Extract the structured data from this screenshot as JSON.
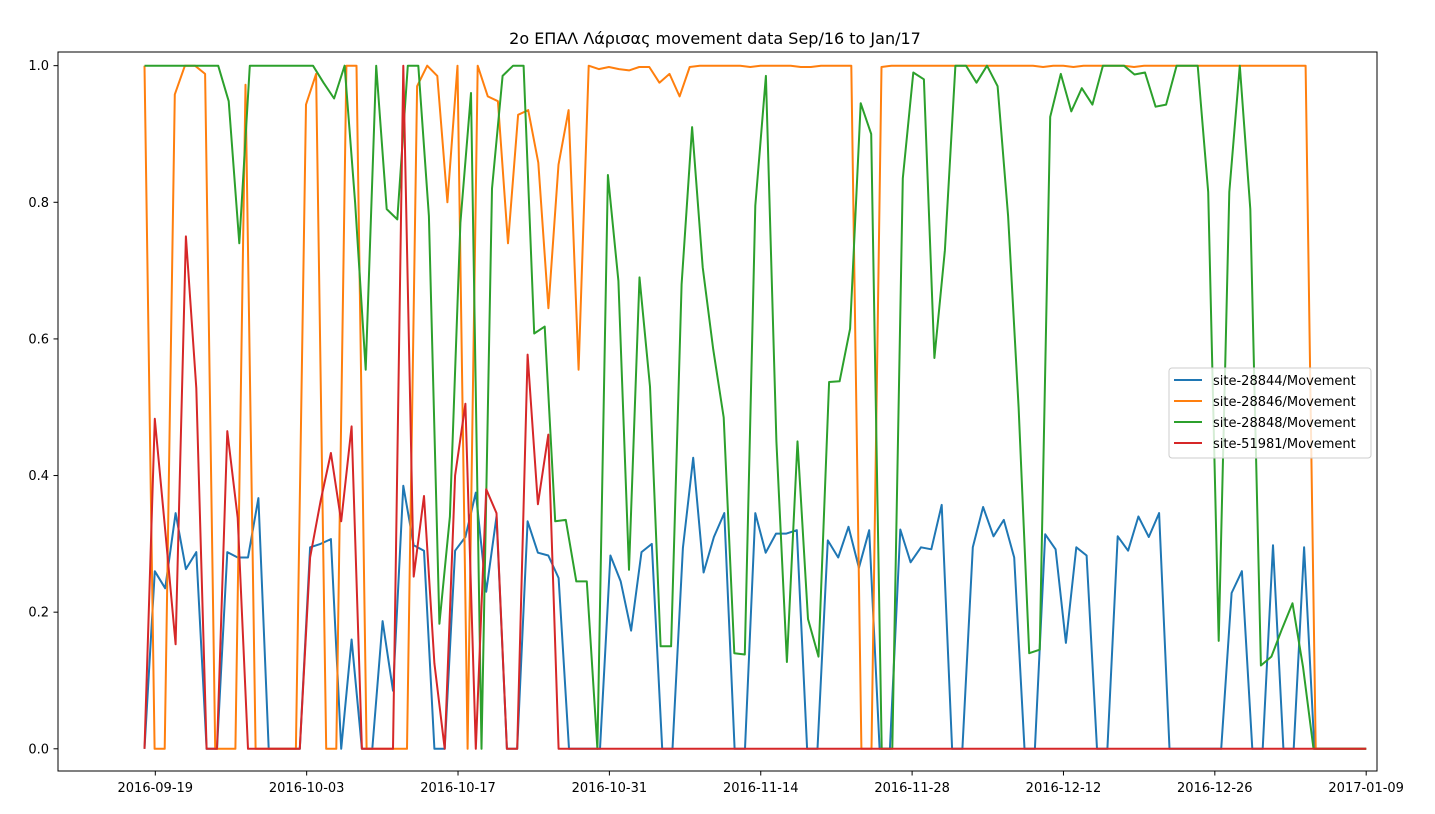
{
  "chart_data": {
    "type": "line",
    "title": "2o ΕΠΑΛ Λάρισας movement data Sep/16 to Jan/17",
    "xlabel": "",
    "ylabel": "",
    "x_start": "2016-09-18",
    "x_end": "2017-01-09",
    "xlim": [
      "2016-09-10",
      "2017-01-10"
    ],
    "ylim": [
      -0.0325,
      1.02
    ],
    "x_ticks": [
      "2016-09-19",
      "2016-10-03",
      "2016-10-17",
      "2016-10-31",
      "2016-11-14",
      "2016-11-28",
      "2016-12-12",
      "2016-12-26",
      "2017-01-09"
    ],
    "y_ticks": [
      0.0,
      0.2,
      0.4,
      0.6,
      0.8,
      1.0
    ],
    "y_tick_labels": [
      "0.0",
      "0.2",
      "0.4",
      "0.6",
      "0.8",
      "1.0"
    ],
    "grid": false,
    "legend_position": "center-right",
    "series": [
      {
        "name": "site-28844/Movement",
        "color": "#1f77b4",
        "values": [
          0,
          0.26,
          0.235,
          0.345,
          0.263,
          0.288,
          0,
          0,
          0.288,
          0.28,
          0.28,
          0.367,
          0,
          0,
          0,
          0,
          0.295,
          0.3,
          0.307,
          0,
          0.16,
          0,
          0,
          0.187,
          0.085,
          0.385,
          0.298,
          0.29,
          0,
          0,
          0.29,
          0.31,
          0.375,
          0.23,
          0.34,
          0,
          0,
          0.333,
          0.287,
          0.283,
          0.25,
          0,
          0,
          0,
          0,
          0.283,
          0.245,
          0.173,
          0.288,
          0.3,
          0,
          0,
          0.294,
          0.426,
          0.258,
          0.31,
          0.345,
          0,
          0,
          0.345,
          0.287,
          0.315,
          0.315,
          0.32,
          0,
          0,
          0.305,
          0.28,
          0.325,
          0.265,
          0.32,
          0,
          0,
          0.321,
          0.273,
          0.295,
          0.292,
          0.357,
          0,
          0,
          0.295,
          0.354,
          0.311,
          0.335,
          0.28,
          0,
          0,
          0.314,
          0.292,
          0.155,
          0.295,
          0.283,
          0,
          0,
          0.311,
          0.29,
          0.34,
          0.31,
          0.345,
          0,
          0,
          0,
          0,
          0,
          0,
          0.228,
          0.26,
          0,
          0,
          0.298,
          0,
          0,
          0.295,
          0,
          0,
          0,
          0,
          0,
          0
        ]
      },
      {
        "name": "site-28846/Movement",
        "color": "#ff7f0e",
        "values": [
          1,
          0,
          0,
          0.958,
          1,
          1,
          0.988,
          0,
          0,
          0,
          0.972,
          0,
          0,
          0,
          0,
          0,
          0.943,
          0.988,
          0,
          0,
          1,
          1,
          0,
          0,
          0,
          0,
          0,
          0.97,
          1,
          0.985,
          0.8,
          1,
          0,
          1,
          0.955,
          0.948,
          0.74,
          0.928,
          0.935,
          0.858,
          0.645,
          0.855,
          0.935,
          0.555,
          1,
          0.995,
          0.998,
          0.995,
          0.993,
          0.998,
          0.998,
          0.975,
          0.988,
          0.955,
          0.998,
          1,
          1,
          1,
          1,
          1,
          0.998,
          1,
          1,
          1,
          1,
          0.998,
          0.998,
          1,
          1,
          1,
          1,
          0,
          0,
          0.998,
          1,
          1,
          1,
          1,
          1,
          1,
          1,
          1,
          1,
          1,
          1,
          1,
          1,
          1,
          1,
          0.998,
          1,
          1,
          0.998,
          1,
          1,
          1,
          1,
          1,
          0.998,
          1,
          1,
          1,
          1,
          1,
          1,
          1,
          1,
          1,
          1,
          1,
          1,
          1,
          1,
          1,
          1,
          1,
          0,
          0,
          0,
          0,
          0,
          0
        ]
      },
      {
        "name": "site-28848/Movement",
        "color": "#2ca02c",
        "values": [
          1,
          1,
          1,
          1,
          1,
          1,
          1,
          1,
          0.948,
          0.74,
          1,
          1,
          1,
          1,
          1,
          1,
          1,
          0.975,
          0.952,
          1,
          0.8,
          0.555,
          1,
          0.79,
          0.775,
          1,
          1,
          0.78,
          0.183,
          0.34,
          0.77,
          0.96,
          0,
          0.82,
          0.985,
          1,
          1,
          0.608,
          0.618,
          0.333,
          0.335,
          0.245,
          0.245,
          0,
          0.84,
          0.685,
          0.262,
          0.69,
          0.53,
          0.15,
          0.15,
          0.68,
          0.91,
          0.705,
          0.585,
          0.485,
          0.14,
          0.138,
          0.795,
          0.985,
          0.45,
          0.127,
          0.45,
          0.19,
          0.135,
          0.537,
          0.538,
          0.615,
          0.945,
          0.9,
          0,
          0,
          0.835,
          0.99,
          0.98,
          0.572,
          0.73,
          1,
          1,
          0.975,
          1,
          0.97,
          0.78,
          0.5,
          0.14,
          0.145,
          0.925,
          0.988,
          0.933,
          0.967,
          0.943,
          1,
          1,
          1,
          0.987,
          0.99,
          0.94,
          0.943,
          1,
          1,
          1,
          0.815,
          0.158,
          0.815,
          1,
          0.79,
          0.122,
          0.135,
          0.175,
          0.213,
          0.12,
          0,
          0,
          0,
          0,
          0,
          0
        ]
      },
      {
        "name": "site-51981/Movement",
        "color": "#d62728",
        "values": [
          0,
          0.483,
          0.32,
          0.153,
          0.75,
          0.528,
          0,
          0,
          0.465,
          0.338,
          0,
          0,
          0,
          0,
          0,
          0,
          0.28,
          0.362,
          0.433,
          0.333,
          0.472,
          0,
          0,
          0,
          0,
          1,
          0.252,
          0.37,
          0.125,
          0,
          0.4,
          0.505,
          0,
          0.38,
          0.345,
          0,
          0,
          0.577,
          0.358,
          0.46,
          0,
          0,
          0,
          0,
          0,
          0,
          0,
          0,
          0,
          0,
          0,
          0,
          0,
          0,
          0,
          0,
          0,
          0,
          0,
          0,
          0,
          0,
          0,
          0,
          0,
          0,
          0,
          0,
          0,
          0,
          0,
          0,
          0,
          0,
          0,
          0,
          0,
          0,
          0,
          0,
          0,
          0,
          0,
          0,
          0,
          0,
          0,
          0,
          0,
          0,
          0,
          0,
          0,
          0,
          0,
          0,
          0,
          0,
          0,
          0,
          0,
          0,
          0,
          0,
          0,
          0,
          0,
          0,
          0,
          0,
          0,
          0,
          0,
          0,
          0,
          0,
          0,
          0,
          0
        ]
      }
    ]
  }
}
